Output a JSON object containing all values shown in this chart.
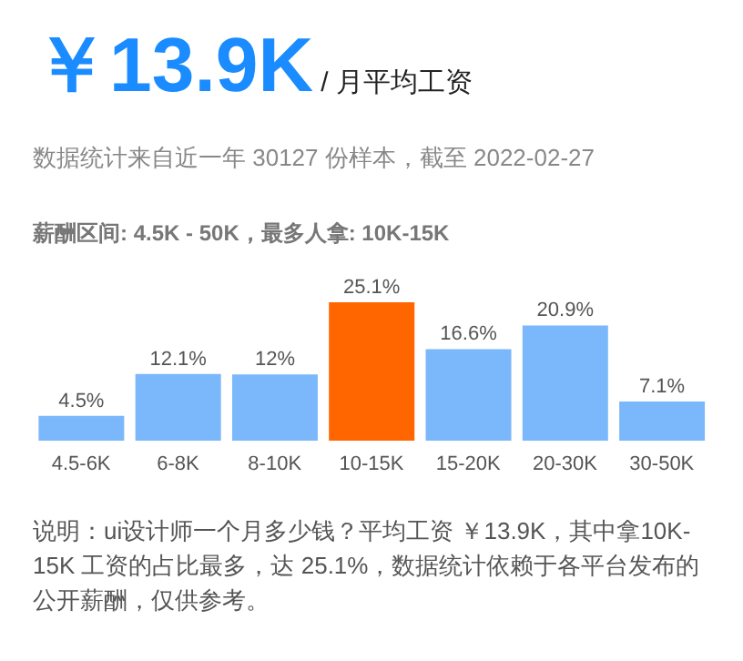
{
  "chart_data": {
    "type": "bar",
    "title": "￥13.9K",
    "subtitle": "/ 月平均工资",
    "annotations": [
      "数据统计来自近一年 30127 份样本，截至 2022-02-27",
      "薪酬区间: 4.5K - 50K，最多人拿: 10K-15K",
      "说明：ui设计师一个月多少钱？平均工资 ￥13.9K，其中拿10K-15K 工资的占比最多，达 25.1%，数据统计依赖于各平台发布的公开薪酬，仅供参考。"
    ],
    "categories": [
      "4.5-6K",
      "6-8K",
      "8-10K",
      "10-15K",
      "15-20K",
      "20-30K",
      "30-50K"
    ],
    "values": [
      4.5,
      12.1,
      12,
      25.1,
      16.6,
      20.9,
      7.1
    ],
    "value_labels": [
      "4.5%",
      "12.1%",
      "12%",
      "25.1%",
      "16.6%",
      "20.9%",
      "7.1%"
    ],
    "colors": [
      "#7ab8fb",
      "#7ab8fb",
      "#7ab8fb",
      "#ff6600",
      "#7ab8fb",
      "#7ab8fb",
      "#7ab8fb"
    ]
  }
}
